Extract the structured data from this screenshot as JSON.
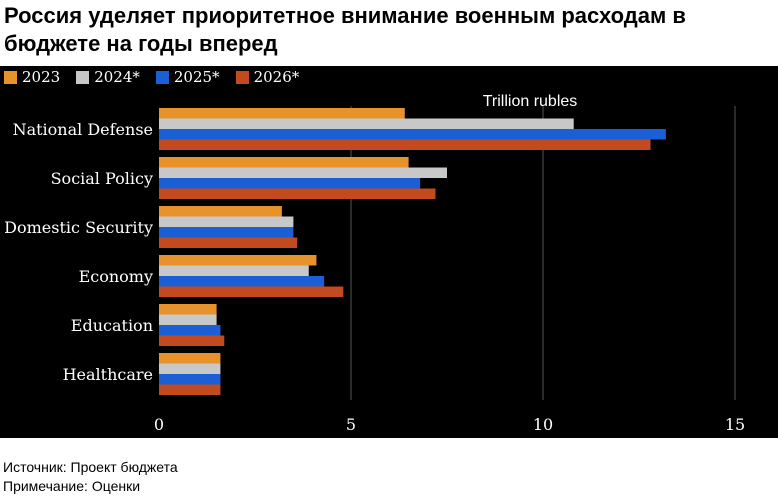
{
  "title": "Россия уделяет приоритетное внимание военным расходам в бюджете на годы вперед",
  "footer": {
    "source": "Источник: Проект бюджета",
    "note": "Примечание: Оценки"
  },
  "colors": {
    "2023": "#e8922c",
    "2024": "#c8c8c8",
    "2025": "#1a5fd6",
    "2026": "#c24a1e"
  },
  "chart_data": {
    "type": "bar",
    "orientation": "horizontal",
    "title": "",
    "xlabel": "",
    "ylabel": "",
    "unit_label": "Trillion rubles",
    "categories": [
      "National Defense",
      "Social Policy",
      "Domestic Security",
      "Economy",
      "Education",
      "Healthcare"
    ],
    "series": [
      {
        "name": "2023",
        "values": [
          6.4,
          6.5,
          3.2,
          4.1,
          1.5,
          1.6
        ]
      },
      {
        "name": "2024*",
        "values": [
          10.8,
          7.5,
          3.5,
          3.9,
          1.5,
          1.6
        ]
      },
      {
        "name": "2025*",
        "values": [
          13.2,
          6.8,
          3.5,
          4.3,
          1.6,
          1.6
        ]
      },
      {
        "name": "2026*",
        "values": [
          12.8,
          7.2,
          3.6,
          4.8,
          1.7,
          1.6
        ]
      }
    ],
    "xlim": [
      0,
      15
    ],
    "xticks": [
      0,
      5,
      10,
      15
    ],
    "grid": "vertical",
    "legend_position": "top-left"
  }
}
